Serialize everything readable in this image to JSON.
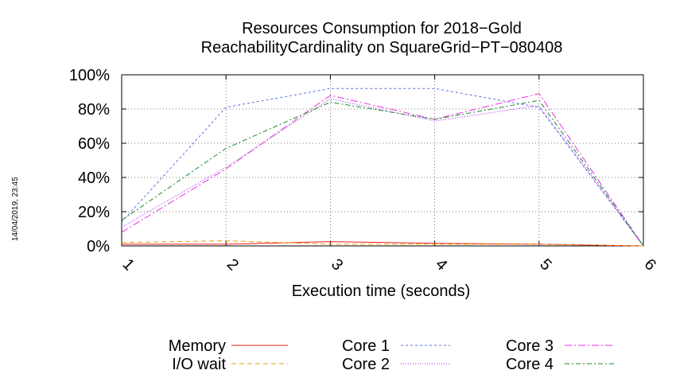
{
  "chart_data": {
    "type": "line",
    "title": [
      "Resources Consumption for 2018−Gold",
      "ReachabilityCardinality on SquareGrid−PT−080408"
    ],
    "xlabel": "Execution time (seconds)",
    "ylabel": "",
    "x": [
      1,
      2,
      3,
      4,
      5,
      6
    ],
    "xlim": [
      1,
      6
    ],
    "ylim": [
      0,
      100
    ],
    "xticks": [
      "1",
      "2",
      "3",
      "4",
      "5",
      "6"
    ],
    "yticks": [
      "0%",
      "20%",
      "40%",
      "60%",
      "80%",
      "100%"
    ],
    "yticks_values": [
      0,
      20,
      40,
      60,
      80,
      100
    ],
    "grid": true,
    "legend_position": "bottom",
    "series": [
      {
        "name": "Memory",
        "color": "#e8201a",
        "dash": "",
        "values": [
          1,
          1,
          2.5,
          1.5,
          1,
          0
        ]
      },
      {
        "name": "I/O wait",
        "color": "#f0a000",
        "dash": "6,4",
        "values": [
          2,
          3,
          1,
          1,
          1,
          0
        ]
      },
      {
        "name": "Core 1",
        "color": "#5a6fe0",
        "dash": "3,3",
        "values": [
          14,
          81,
          92,
          92,
          81,
          0
        ]
      },
      {
        "name": "Core 2",
        "color": "#a020f0",
        "dash": "1,2",
        "values": [
          11,
          46,
          86,
          73,
          82,
          0
        ]
      },
      {
        "name": "Core 3",
        "color": "#e830e0",
        "dash": "9,3,2,3",
        "values": [
          8,
          45,
          88,
          74,
          89,
          0
        ]
      },
      {
        "name": "Core 4",
        "color": "#1a8a2a",
        "dash": "6,3,2,3",
        "values": [
          15,
          57,
          84,
          74,
          85,
          0
        ]
      }
    ]
  },
  "timestamp": "14/04/2019, 23:45"
}
